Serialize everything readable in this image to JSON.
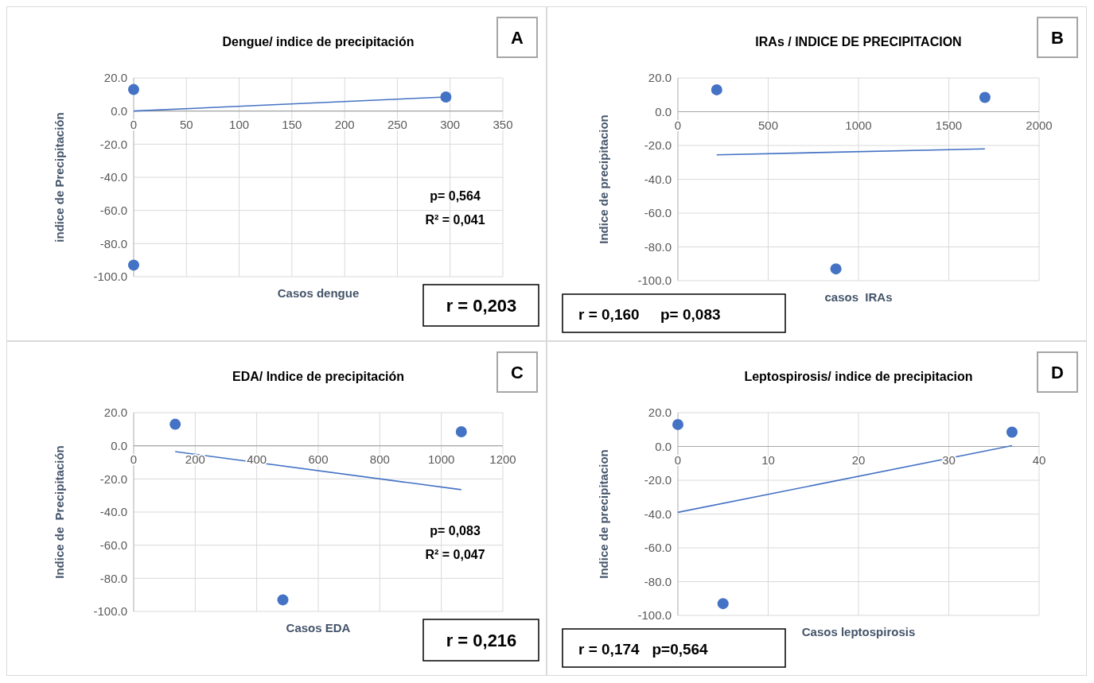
{
  "chart_data": [
    {
      "type": "scatter",
      "title": "Dengue/ indice de  precipitación",
      "xlabel": "Casos dengue",
      "ylabel": "indice de Precipitación",
      "xlim": [
        0,
        350
      ],
      "xticks": [
        0,
        50,
        100,
        150,
        200,
        250,
        300,
        350
      ],
      "ylim": [
        -100,
        20
      ],
      "yticks": [
        {
          "value": -100,
          "label": "-100.0"
        },
        {
          "value": -80,
          "label": "-80.0"
        },
        {
          "value": -60,
          "label": "-60.0"
        },
        {
          "value": -40,
          "label": "-40.0"
        },
        {
          "value": -20,
          "label": "-20.0"
        },
        {
          "value": 0,
          "label": "0.0"
        },
        {
          "value": 20,
          "label": "20.0"
        }
      ],
      "grid": true,
      "series": [
        {
          "marker": "circle",
          "color": "#4472c4",
          "x": [
            0,
            296,
            0
          ],
          "values": [
            13,
            8.5,
            -93
          ]
        },
        {
          "type": "line",
          "marker": "none",
          "color": "#4472c4",
          "x": [
            0,
            296
          ],
          "values": [
            0,
            8.5
          ]
        }
      ],
      "annotations": [
        "A",
        "p= 0,564",
        "R² = 0,041",
        "r = 0,203"
      ]
    },
    {
      "type": "scatter",
      "title": "IRAs / INDICE DE PRECIPITACION",
      "xlabel": "casos  IRAs",
      "ylabel": "Indice de precipitacion",
      "xlim": [
        0,
        2000
      ],
      "xticks": [
        0,
        500,
        1000,
        1500,
        2000
      ],
      "ylim": [
        -100,
        20
      ],
      "yticks": [
        {
          "value": -100,
          "label": "-100.0"
        },
        {
          "value": -80,
          "label": "-80.0"
        },
        {
          "value": -60,
          "label": "-60.0"
        },
        {
          "value": -40,
          "label": "-40.0"
        },
        {
          "value": -20,
          "label": "-20.0"
        },
        {
          "value": 0,
          "label": "0.0"
        },
        {
          "value": 20,
          "label": "20.0"
        }
      ],
      "grid": true,
      "series": [
        {
          "marker": "circle",
          "color": "#4472c4",
          "x": [
            215,
            1700,
            875
          ],
          "values": [
            13,
            8.5,
            -93
          ]
        },
        {
          "type": "line",
          "marker": "none",
          "color": "#4472c4",
          "x": [
            215,
            1700
          ],
          "values": [
            -25.5,
            -22
          ]
        }
      ],
      "annotations": [
        "B",
        "r = 0,160     p= 0,083"
      ]
    },
    {
      "type": "scatter",
      "title": "EDA/ Indice de precipitación",
      "xlabel": "Casos EDA",
      "ylabel": "Indice de  Precipitación",
      "xlim": [
        0,
        1200
      ],
      "xticks": [
        0,
        200,
        400,
        600,
        800,
        1000,
        1200
      ],
      "ylim": [
        -100,
        20
      ],
      "yticks": [
        {
          "value": -100,
          "label": "-100.0"
        },
        {
          "value": -80,
          "label": "-80.0"
        },
        {
          "value": -60,
          "label": "-60.0"
        },
        {
          "value": -40,
          "label": "-40.0"
        },
        {
          "value": -20,
          "label": "-20.0"
        },
        {
          "value": 0,
          "label": "0.0"
        },
        {
          "value": 20,
          "label": "20.0"
        }
      ],
      "grid": true,
      "series": [
        {
          "marker": "circle",
          "color": "#4472c4",
          "x": [
            135,
            1065,
            485
          ],
          "values": [
            13,
            8.5,
            -93
          ]
        },
        {
          "type": "line",
          "marker": "none",
          "color": "#4472c4",
          "x": [
            135,
            1065
          ],
          "values": [
            -3.5,
            -26.5
          ]
        }
      ],
      "annotations": [
        "C",
        "p= 0,083",
        "R² = 0,047",
        "r = 0,216"
      ]
    },
    {
      "type": "scatter",
      "title": "Leptospirosis/ indice de precipitacion",
      "xlabel": "Casos leptospirosis",
      "ylabel": "Indice de precipitacion",
      "xlim": [
        0,
        40
      ],
      "xticks": [
        0,
        10,
        20,
        30,
        40
      ],
      "ylim": [
        -100,
        20
      ],
      "yticks": [
        {
          "value": -100,
          "label": "-100.0"
        },
        {
          "value": -80,
          "label": "-80.0"
        },
        {
          "value": -60,
          "label": "-60.0"
        },
        {
          "value": -40,
          "label": "-40.0"
        },
        {
          "value": -20,
          "label": "-20.0"
        },
        {
          "value": 0,
          "label": "0.0"
        },
        {
          "value": 20,
          "label": "20.0"
        }
      ],
      "grid": true,
      "series": [
        {
          "marker": "circle",
          "color": "#4472c4",
          "x": [
            0,
            37,
            5
          ],
          "values": [
            13,
            8.5,
            -93
          ]
        },
        {
          "type": "line",
          "marker": "none",
          "color": "#4472c4",
          "x": [
            0,
            37
          ],
          "values": [
            -39,
            0.5
          ]
        }
      ],
      "annotations": [
        "D",
        "r = 0,174   p=0,564"
      ]
    }
  ]
}
